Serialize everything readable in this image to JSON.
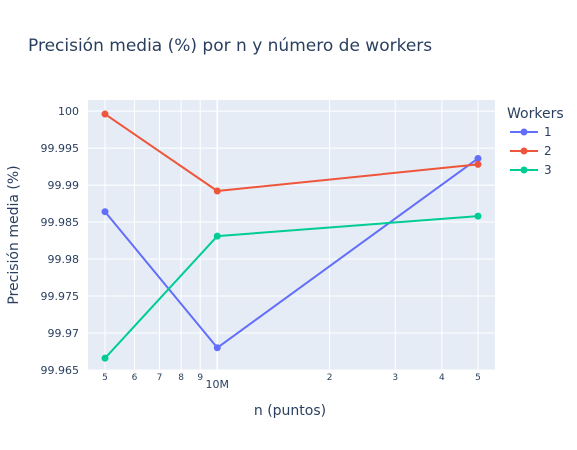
{
  "chart_data": {
    "type": "line",
    "title": "Precisión media (%) por n y número de workers",
    "xlabel": "n (puntos)",
    "ylabel": "Precisión media (%)",
    "x_scale": "log",
    "x": [
      5000000,
      10000000,
      50000000
    ],
    "x_ticks": [
      {
        "value": 5000000,
        "label": "5",
        "small": true
      },
      {
        "value": 6000000,
        "label": "6",
        "small": true
      },
      {
        "value": 7000000,
        "label": "7",
        "small": true
      },
      {
        "value": 8000000,
        "label": "8",
        "small": true
      },
      {
        "value": 9000000,
        "label": "9",
        "small": true
      },
      {
        "value": 10000000,
        "label": "10M",
        "small": false
      },
      {
        "value": 20000000,
        "label": "2",
        "small": true
      },
      {
        "value": 30000000,
        "label": "3",
        "small": true
      },
      {
        "value": 40000000,
        "label": "4",
        "small": true
      },
      {
        "value": 50000000,
        "label": "5",
        "small": true
      }
    ],
    "ylim": [
      99.965,
      100.0015
    ],
    "y_ticks": [
      99.965,
      99.97,
      99.975,
      99.98,
      99.985,
      99.99,
      99.995,
      100
    ],
    "y_tick_labels": [
      "99.965",
      "99.97",
      "99.975",
      "99.98",
      "99.985",
      "99.99",
      "99.995",
      "100"
    ],
    "grid": true,
    "legend_title": "Workers",
    "legend_position": "right",
    "series": [
      {
        "name": "1",
        "color": "#636efa",
        "values": [
          99.9864,
          99.968,
          99.9936
        ]
      },
      {
        "name": "2",
        "color": "#ef553b",
        "values": [
          99.9996,
          99.9892,
          99.9928
        ]
      },
      {
        "name": "3",
        "color": "#00cc96",
        "values": [
          99.9666,
          99.9831,
          99.9858
        ]
      }
    ]
  }
}
